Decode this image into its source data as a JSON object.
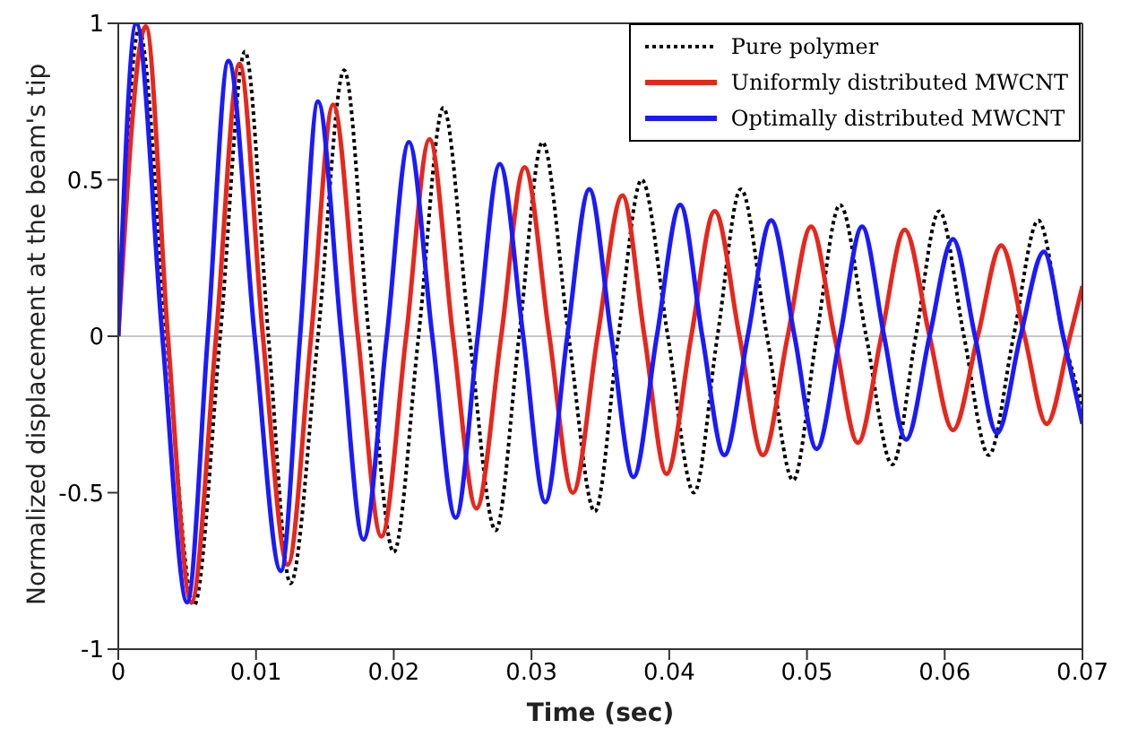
{
  "chart_data": {
    "type": "line",
    "xlabel": "Time (sec)",
    "ylabel": "Normalized displacement at the beam's tip",
    "xlim": [
      0,
      0.07
    ],
    "xticks": [
      0,
      0.01,
      0.02,
      0.03,
      0.04,
      0.05,
      0.06,
      0.07
    ],
    "ylim": [
      -1,
      1
    ],
    "yticks": [
      -1,
      -0.5,
      0,
      0.5,
      1
    ],
    "legend": "top right",
    "marker": "none",
    "ref_lines": [
      {
        "axis": "y",
        "value": 0,
        "color": "#c8c8c8"
      }
    ],
    "series": [
      {
        "name": "Pure polymer",
        "color": "#000000",
        "line_style": "dotted",
        "x": [
          0,
          0.0015,
          0.0035,
          0.0055,
          0.0074,
          0.0092,
          0.0109,
          0.0125,
          0.0145,
          0.0164,
          0.0182,
          0.02,
          0.0218,
          0.0236,
          0.0255,
          0.0274,
          0.0291,
          0.0308,
          0.0327,
          0.0346,
          0.0363,
          0.038,
          0.0399,
          0.0418,
          0.0435,
          0.0452,
          0.0471,
          0.049,
          0.0507,
          0.0524,
          0.0543,
          0.0562,
          0.0579,
          0.0596,
          0.0614,
          0.0632,
          0.065,
          0.0668,
          0.0686,
          0.07
        ],
        "values": [
          0,
          0.98,
          0,
          -0.86,
          0,
          0.91,
          0,
          -0.79,
          0,
          0.85,
          0,
          -0.69,
          0,
          0.73,
          0,
          -0.62,
          0,
          0.62,
          0,
          -0.56,
          0,
          0.5,
          0,
          -0.5,
          0,
          0.47,
          0,
          -0.46,
          0,
          0.42,
          0,
          -0.41,
          0,
          0.4,
          0,
          -0.38,
          0,
          0.37,
          0,
          -0.22
        ]
      },
      {
        "name": "Uniformly distributed MWCNT",
        "color": "#e8261c",
        "line_style": "solid",
        "x": [
          0,
          0.002,
          0.0036,
          0.0053,
          0.0071,
          0.0088,
          0.0105,
          0.0123,
          0.014,
          0.0156,
          0.0174,
          0.0191,
          0.0209,
          0.0226,
          0.0243,
          0.026,
          0.0278,
          0.0295,
          0.0313,
          0.033,
          0.0348,
          0.0366,
          0.0382,
          0.0398,
          0.0416,
          0.0433,
          0.0451,
          0.0468,
          0.0486,
          0.0503,
          0.052,
          0.0537,
          0.0554,
          0.0571,
          0.0589,
          0.0606,
          0.0624,
          0.0641,
          0.0658,
          0.0674,
          0.0691,
          0.07
        ],
        "values": [
          0,
          0.99,
          0,
          -0.85,
          0,
          0.87,
          0,
          -0.73,
          0,
          0.74,
          0,
          -0.64,
          0,
          0.63,
          0,
          -0.55,
          0,
          0.54,
          0,
          -0.5,
          0,
          0.45,
          0,
          -0.44,
          0,
          0.4,
          0,
          -0.38,
          0,
          0.35,
          0,
          -0.34,
          0,
          0.34,
          0,
          -0.3,
          0,
          0.29,
          0,
          -0.28,
          0,
          0.16
        ]
      },
      {
        "name": "Optimally distributed MWCNT",
        "color": "#1a1aff",
        "line_style": "solid",
        "x": [
          0,
          0.0013,
          0.0032,
          0.005,
          0.0065,
          0.008,
          0.0099,
          0.0118,
          0.0132,
          0.0145,
          0.0162,
          0.0178,
          0.0195,
          0.0211,
          0.0228,
          0.0245,
          0.0261,
          0.0277,
          0.0294,
          0.031,
          0.0326,
          0.0342,
          0.0358,
          0.0374,
          0.0391,
          0.0408,
          0.0424,
          0.044,
          0.0457,
          0.0474,
          0.0491,
          0.0507,
          0.0524,
          0.054,
          0.0556,
          0.0572,
          0.0589,
          0.0606,
          0.0622,
          0.0638,
          0.0655,
          0.0672,
          0.0686,
          0.07
        ],
        "values": [
          0,
          1,
          0,
          -0.85,
          0,
          0.88,
          0,
          -0.75,
          0,
          0.75,
          0,
          -0.65,
          0,
          0.62,
          0,
          -0.58,
          0,
          0.55,
          0,
          -0.53,
          0,
          0.47,
          0,
          -0.45,
          0,
          0.42,
          0,
          -0.38,
          0,
          0.37,
          0,
          -0.36,
          0,
          0.35,
          0,
          -0.33,
          0,
          0.31,
          0,
          -0.31,
          0,
          0.27,
          0,
          -0.28
        ]
      }
    ]
  }
}
